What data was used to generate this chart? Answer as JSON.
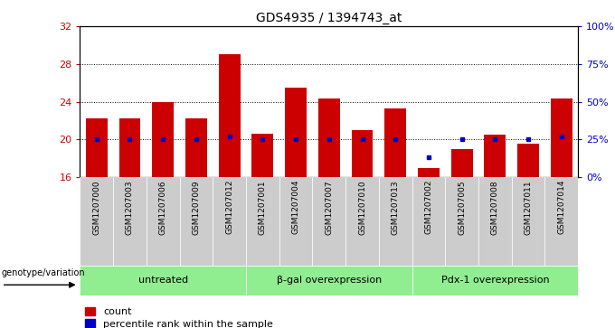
{
  "title": "GDS4935 / 1394743_at",
  "samples": [
    "GSM1207000",
    "GSM1207003",
    "GSM1207006",
    "GSM1207009",
    "GSM1207012",
    "GSM1207001",
    "GSM1207004",
    "GSM1207007",
    "GSM1207010",
    "GSM1207013",
    "GSM1207002",
    "GSM1207005",
    "GSM1207008",
    "GSM1207011",
    "GSM1207014"
  ],
  "counts": [
    22.2,
    22.2,
    24.0,
    22.2,
    29.0,
    20.6,
    25.5,
    24.3,
    21.0,
    23.3,
    17.0,
    19.0,
    20.5,
    19.5,
    24.3
  ],
  "percentile_values": [
    25,
    25,
    25,
    25,
    27,
    25,
    25,
    25,
    25,
    25,
    13,
    25,
    25,
    25,
    27
  ],
  "groups": [
    {
      "label": "untreated",
      "start": 0,
      "end": 5
    },
    {
      "label": "β-gal overexpression",
      "start": 5,
      "end": 10
    },
    {
      "label": "Pdx-1 overexpression",
      "start": 10,
      "end": 15
    }
  ],
  "ylim_left": [
    16,
    32
  ],
  "yticks_left": [
    16,
    20,
    24,
    28,
    32
  ],
  "ylim_right": [
    0,
    100
  ],
  "yticks_right": [
    0,
    25,
    50,
    75,
    100
  ],
  "bar_color": "#cc0000",
  "dot_color": "#0000cc",
  "bar_width": 0.65,
  "group_bg_color": "#90ee90",
  "sample_bg_color": "#cccccc",
  "legend_count_label": "count",
  "legend_pct_label": "percentile rank within the sample",
  "genotype_label": "genotype/variation"
}
